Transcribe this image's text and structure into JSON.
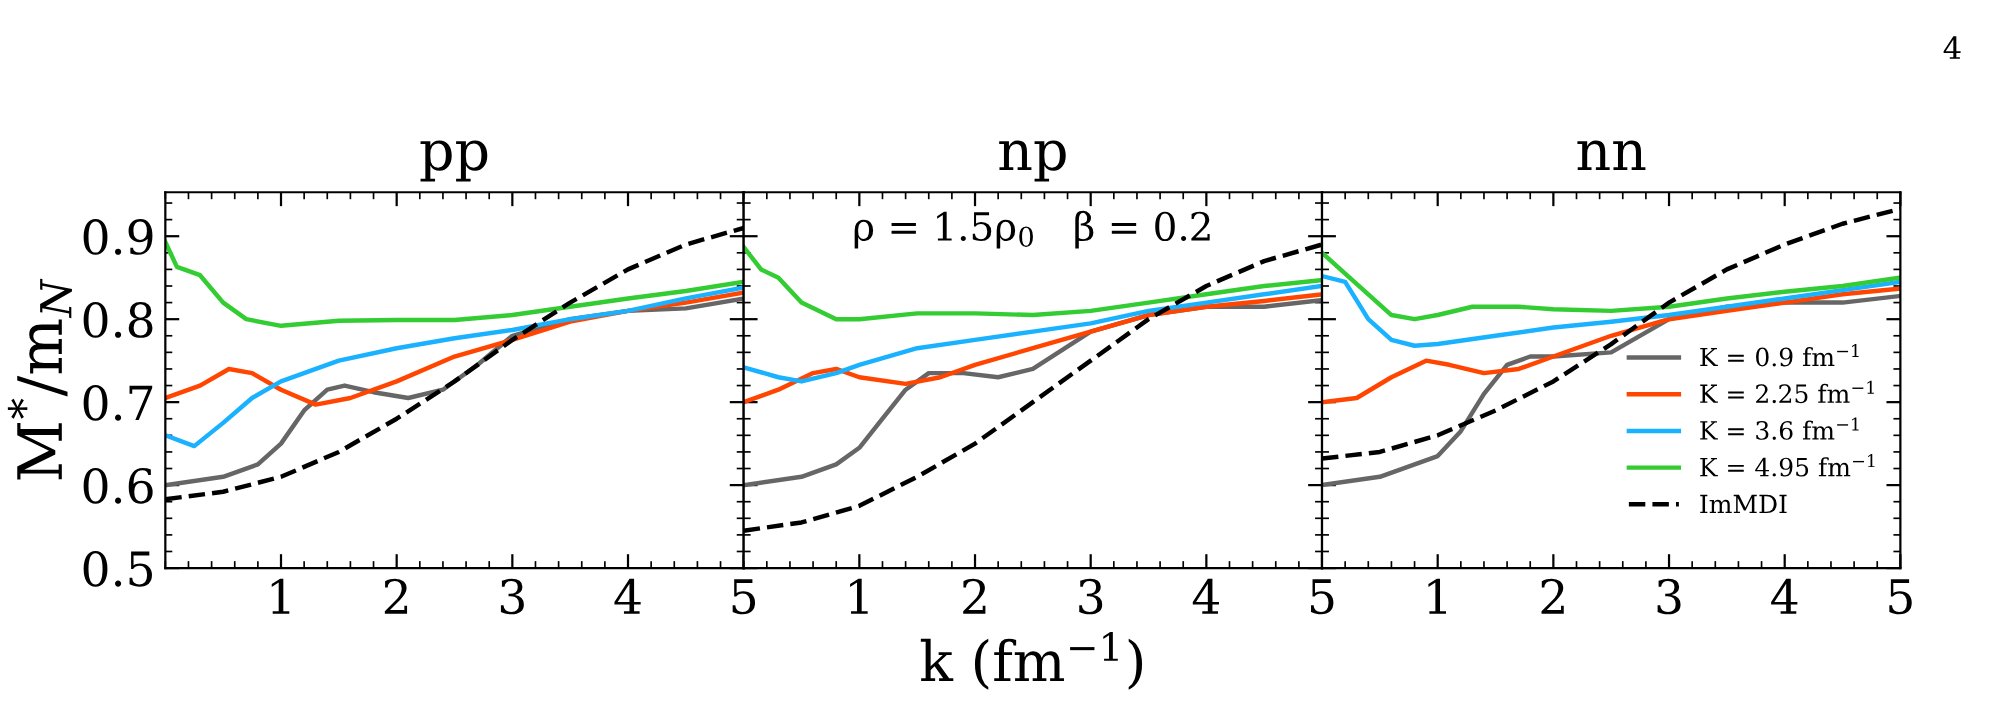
{
  "chart_data": [
    {
      "type": "line",
      "title": "pp",
      "ylabel": "M$^{*}$/m$_{N}$",
      "xlim": [
        0,
        5
      ],
      "xticks": [
        1,
        2,
        3,
        4,
        5
      ],
      "ylim": [
        0.5,
        0.953
      ],
      "yticks": [
        0.5,
        0.6,
        0.7,
        0.8,
        0.9
      ],
      "line_style": "solid",
      "grid": false,
      "legend": false,
      "series": [
        {
          "color": "#666666",
          "x": [
            0,
            0.5,
            0.8,
            1.0,
            1.2,
            1.4,
            1.55,
            1.8,
            2.1,
            2.4,
            2.7,
            3,
            3.5,
            4,
            4.5,
            5
          ],
          "values": [
            0.6,
            0.61,
            0.625,
            0.65,
            0.69,
            0.715,
            0.72,
            0.712,
            0.705,
            0.715,
            0.745,
            0.78,
            0.8,
            0.81,
            0.813,
            0.825
          ]
        },
        {
          "color": "#ff4500",
          "x": [
            0,
            0.3,
            0.55,
            0.75,
            1.0,
            1.3,
            1.6,
            2,
            2.5,
            3,
            3.5,
            4,
            4.5,
            5
          ],
          "values": [
            0.705,
            0.72,
            0.74,
            0.735,
            0.715,
            0.697,
            0.705,
            0.725,
            0.755,
            0.775,
            0.797,
            0.81,
            0.82,
            0.832
          ]
        },
        {
          "color": "#1ab2ff",
          "x": [
            0,
            0.25,
            0.5,
            0.75,
            1.0,
            1.5,
            2,
            2.5,
            3,
            3.5,
            4,
            4.5,
            5
          ],
          "values": [
            0.66,
            0.647,
            0.675,
            0.705,
            0.725,
            0.75,
            0.765,
            0.777,
            0.787,
            0.8,
            0.81,
            0.825,
            0.838
          ]
        },
        {
          "color": "#33cc33",
          "x": [
            0,
            0.1,
            0.3,
            0.5,
            0.7,
            1.0,
            1.5,
            2,
            2.5,
            3,
            3.5,
            4,
            4.5,
            5
          ],
          "values": [
            0.893,
            0.863,
            0.853,
            0.82,
            0.8,
            0.792,
            0.798,
            0.799,
            0.799,
            0.805,
            0.815,
            0.825,
            0.834,
            0.845
          ]
        },
        {
          "color": "#000000",
          "line_style": "dashed",
          "x": [
            0,
            0.5,
            1,
            1.5,
            2,
            2.5,
            3,
            3.5,
            4,
            4.5,
            5
          ],
          "values": [
            0.583,
            0.592,
            0.61,
            0.64,
            0.68,
            0.725,
            0.775,
            0.82,
            0.86,
            0.89,
            0.91
          ]
        }
      ]
    },
    {
      "type": "line",
      "title": "np",
      "xlabel": "k (fm$^{−1}$)",
      "xlim": [
        0,
        5
      ],
      "xticks": [
        1,
        2,
        3,
        4,
        5
      ],
      "ylim": [
        0.5,
        0.953
      ],
      "yticks": [
        0.5,
        0.6,
        0.7,
        0.8,
        0.9
      ],
      "tick_labels": "x",
      "line_style": "solid",
      "grid": false,
      "legend": false,
      "annotations": [
        "ρ = 1.5ρ$_{0}$   β = 0.2"
      ],
      "series": [
        {
          "color": "#666666",
          "x": [
            0,
            0.5,
            0.8,
            1.0,
            1.2,
            1.4,
            1.6,
            1.9,
            2.2,
            2.5,
            3,
            3.5,
            4,
            4.5,
            5
          ],
          "values": [
            0.6,
            0.61,
            0.625,
            0.645,
            0.68,
            0.715,
            0.735,
            0.735,
            0.73,
            0.74,
            0.785,
            0.805,
            0.815,
            0.815,
            0.823
          ]
        },
        {
          "color": "#ff4500",
          "x": [
            0,
            0.3,
            0.6,
            0.8,
            1.0,
            1.4,
            1.7,
            2,
            2.5,
            3,
            3.5,
            4,
            4.5,
            5
          ],
          "values": [
            0.7,
            0.715,
            0.735,
            0.74,
            0.73,
            0.722,
            0.73,
            0.745,
            0.765,
            0.785,
            0.805,
            0.815,
            0.822,
            0.83
          ]
        },
        {
          "color": "#1ab2ff",
          "x": [
            0,
            0.3,
            0.5,
            0.8,
            1.0,
            1.5,
            2,
            2.5,
            3,
            3.5,
            4,
            4.5,
            5
          ],
          "values": [
            0.742,
            0.73,
            0.725,
            0.735,
            0.745,
            0.765,
            0.775,
            0.785,
            0.795,
            0.81,
            0.82,
            0.83,
            0.84
          ]
        },
        {
          "color": "#33cc33",
          "x": [
            0,
            0.15,
            0.3,
            0.5,
            0.8,
            1.0,
            1.5,
            2,
            2.5,
            3,
            3.5,
            4,
            4.5,
            5
          ],
          "values": [
            0.887,
            0.86,
            0.85,
            0.82,
            0.8,
            0.8,
            0.807,
            0.807,
            0.805,
            0.81,
            0.82,
            0.83,
            0.84,
            0.847
          ]
        },
        {
          "color": "#000000",
          "line_style": "dashed",
          "x": [
            0,
            0.5,
            1,
            1.5,
            2,
            2.5,
            3,
            3.5,
            4,
            4.5,
            5
          ],
          "values": [
            0.545,
            0.555,
            0.575,
            0.61,
            0.65,
            0.7,
            0.75,
            0.8,
            0.84,
            0.87,
            0.89
          ]
        }
      ]
    },
    {
      "type": "line",
      "title": "nn",
      "xlim": [
        0,
        5
      ],
      "xticks": [
        1,
        2,
        3,
        4,
        5
      ],
      "ylim": [
        0.5,
        0.953
      ],
      "yticks": [
        0.5,
        0.6,
        0.7,
        0.8,
        0.9
      ],
      "tick_labels": "x",
      "line_style": "solid",
      "grid": false,
      "legend": "right",
      "annotations": [
        "4"
      ],
      "series": [
        {
          "name": "K = 0.9 fm$^{−1}$",
          "color": "#666666",
          "x": [
            0,
            0.5,
            1.0,
            1.2,
            1.4,
            1.6,
            1.8,
            2,
            2.5,
            3,
            3.5,
            4,
            4.5,
            5
          ],
          "values": [
            0.6,
            0.61,
            0.635,
            0.665,
            0.71,
            0.745,
            0.755,
            0.755,
            0.76,
            0.8,
            0.815,
            0.82,
            0.82,
            0.828
          ]
        },
        {
          "name": "K = 2.25 fm$^{−1}$",
          "color": "#ff4500",
          "x": [
            0,
            0.3,
            0.6,
            0.9,
            1.1,
            1.4,
            1.7,
            2,
            2.5,
            3,
            3.5,
            4,
            4.5,
            5
          ],
          "values": [
            0.7,
            0.705,
            0.73,
            0.75,
            0.745,
            0.735,
            0.74,
            0.755,
            0.78,
            0.8,
            0.81,
            0.82,
            0.83,
            0.837
          ]
        },
        {
          "name": "K = 3.6 fm$^{−1}$",
          "color": "#1ab2ff",
          "x": [
            0,
            0.2,
            0.4,
            0.6,
            0.8,
            1.0,
            1.5,
            2,
            2.5,
            3,
            3.5,
            4,
            4.5,
            5
          ],
          "values": [
            0.852,
            0.845,
            0.8,
            0.775,
            0.768,
            0.77,
            0.78,
            0.79,
            0.797,
            0.805,
            0.815,
            0.825,
            0.835,
            0.845
          ]
        },
        {
          "name": "K = 4.95 fm$^{−1}$",
          "color": "#33cc33",
          "x": [
            0,
            0.2,
            0.4,
            0.6,
            0.8,
            1.0,
            1.3,
            1.7,
            2,
            2.5,
            3,
            3.5,
            4,
            4.5,
            5
          ],
          "values": [
            0.88,
            0.855,
            0.83,
            0.805,
            0.8,
            0.805,
            0.815,
            0.815,
            0.812,
            0.81,
            0.815,
            0.825,
            0.833,
            0.84,
            0.85
          ]
        },
        {
          "name": "ImMDI",
          "color": "#000000",
          "line_style": "dashed",
          "x": [
            0,
            0.5,
            1,
            1.5,
            2,
            2.5,
            3,
            3.5,
            4,
            4.5,
            5
          ],
          "values": [
            0.632,
            0.64,
            0.66,
            0.69,
            0.725,
            0.77,
            0.82,
            0.86,
            0.89,
            0.915,
            0.933
          ]
        }
      ]
    }
  ]
}
